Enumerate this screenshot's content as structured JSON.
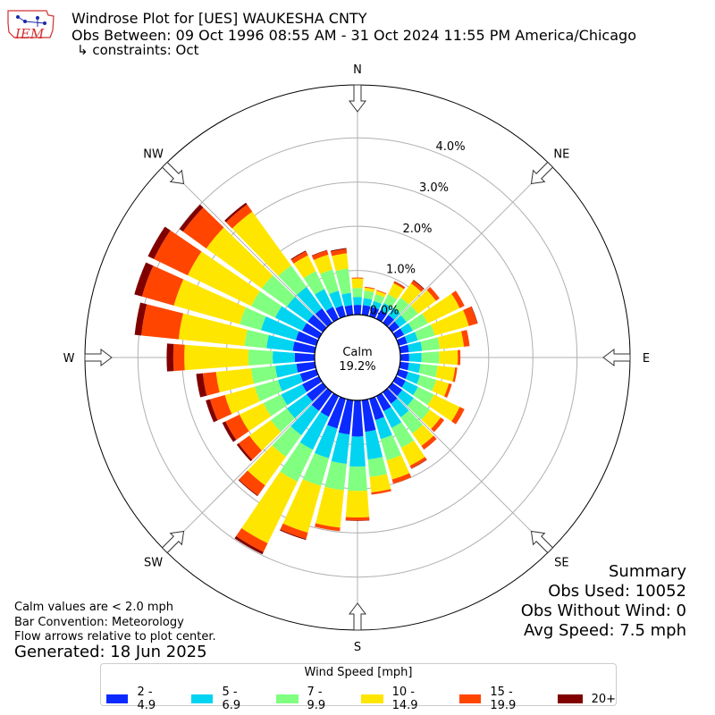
{
  "logo": {
    "text": "IEM"
  },
  "header": {
    "title": "Windrose Plot for [UES] WAUKESHA CNTY",
    "obs_between": "Obs Between: 09 Oct 1996 08:55 AM - 31 Oct 2024 11:55 PM America/Chicago",
    "constraints": "↳ constraints: Oct"
  },
  "notes": {
    "calm_def": "Calm values are < 2.0 mph",
    "bar_convention": "Bar Convention: Meteorology",
    "flow_arrows": "Flow arrows relative to plot center.",
    "generated": "Generated: 18 Jun 2025"
  },
  "summary": {
    "title": "Summary",
    "obs_used": "Obs Used: 10052",
    "obs_without_wind": "Obs Without Wind: 0",
    "avg_speed": "Avg Speed: 7.5 mph"
  },
  "chart_data": {
    "type": "windrose",
    "directions_deg": [
      0,
      10,
      20,
      30,
      40,
      50,
      60,
      70,
      80,
      90,
      100,
      110,
      120,
      130,
      140,
      150,
      160,
      170,
      180,
      190,
      200,
      210,
      220,
      230,
      240,
      250,
      260,
      270,
      280,
      290,
      300,
      310,
      320,
      330,
      340,
      350
    ],
    "speed_bins": [
      "2 - 4.9",
      "5 - 6.9",
      "7 - 9.9",
      "10 - 14.9",
      "15 - 19.9",
      "20+"
    ],
    "bin_colors": [
      "#0a2aff",
      "#00d4f0",
      "#80ff80",
      "#ffe600",
      "#ff4500",
      "#800000"
    ],
    "calm_label": "Calm",
    "calm_percent": "19.2%",
    "radial_ticks": [
      0,
      1,
      2,
      3,
      4
    ],
    "radial_tick_labels": [
      "0.0%",
      "1.0%",
      "2.0%",
      "3.0%",
      "4.0%"
    ],
    "r_max_percent": 5.2,
    "cardinal_labels": [
      {
        "label": "N",
        "deg": 0
      },
      {
        "label": "NE",
        "deg": 45
      },
      {
        "label": "E",
        "deg": 90
      },
      {
        "label": "SE",
        "deg": 135
      },
      {
        "label": "S",
        "deg": 180
      },
      {
        "label": "SW",
        "deg": 225
      },
      {
        "label": "W",
        "deg": 270
      },
      {
        "label": "NW",
        "deg": 315
      }
    ],
    "cumulative_percent": [
      [
        0.22,
        0.4,
        0.6,
        0.82,
        0.84,
        0.84
      ],
      [
        0.22,
        0.38,
        0.55,
        0.62,
        0.64,
        0.64
      ],
      [
        0.22,
        0.36,
        0.52,
        0.6,
        0.62,
        0.62
      ],
      [
        0.22,
        0.4,
        0.62,
        0.9,
        0.94,
        0.95
      ],
      [
        0.22,
        0.42,
        0.7,
        1.1,
        1.18,
        1.2
      ],
      [
        0.2,
        0.4,
        0.72,
        1.22,
        1.32,
        1.32
      ],
      [
        0.2,
        0.42,
        0.8,
        1.6,
        1.72,
        1.72
      ],
      [
        0.2,
        0.45,
        0.85,
        1.65,
        1.85,
        1.86
      ],
      [
        0.2,
        0.5,
        0.9,
        1.45,
        1.58,
        1.58
      ],
      [
        0.2,
        0.48,
        0.88,
        1.3,
        1.36,
        1.36
      ],
      [
        0.2,
        0.46,
        0.85,
        1.25,
        1.3,
        1.3
      ],
      [
        0.22,
        0.5,
        0.88,
        1.18,
        1.25,
        1.25
      ],
      [
        0.24,
        0.55,
        0.95,
        1.6,
        1.72,
        1.72
      ],
      [
        0.28,
        0.6,
        1.05,
        1.35,
        1.45,
        1.45
      ],
      [
        0.32,
        0.7,
        1.15,
        1.5,
        1.6,
        1.6
      ],
      [
        0.38,
        0.8,
        1.3,
        1.75,
        1.82,
        1.83
      ],
      [
        0.5,
        0.95,
        1.45,
        1.9,
        2.0,
        2.0
      ],
      [
        0.72,
        1.35,
        1.75,
        2.1,
        2.15,
        2.15
      ],
      [
        0.82,
        1.5,
        2.05,
        2.65,
        2.72,
        2.73
      ],
      [
        0.78,
        1.45,
        2.05,
        2.9,
        2.98,
        2.98
      ],
      [
        0.7,
        1.4,
        2.05,
        3.15,
        3.3,
        3.32
      ],
      [
        0.52,
        1.35,
        2.15,
        3.7,
        3.92,
        3.98
      ],
      [
        0.52,
        1.2,
        1.8,
        2.6,
        2.88,
        2.9
      ],
      [
        0.45,
        1.0,
        1.45,
        2.05,
        2.35,
        2.4
      ],
      [
        0.42,
        0.95,
        1.4,
        2.0,
        2.35,
        2.43
      ],
      [
        0.38,
        0.9,
        1.45,
        2.15,
        2.5,
        2.6
      ],
      [
        0.42,
        0.9,
        1.45,
        2.25,
        2.55,
        2.7
      ],
      [
        0.45,
        0.95,
        1.5,
        2.95,
        3.2,
        3.35
      ],
      [
        0.5,
        1.1,
        1.6,
        3.1,
        3.95,
        4.1
      ],
      [
        0.48,
        1.3,
        1.8,
        3.35,
        4.1,
        4.28
      ],
      [
        0.42,
        1.1,
        1.7,
        3.3,
        4.15,
        4.3
      ],
      [
        0.42,
        1.0,
        1.7,
        3.25,
        3.9,
        4.0
      ],
      [
        0.4,
        1.0,
        1.6,
        3.1,
        3.3,
        3.35
      ],
      [
        0.3,
        0.75,
        1.2,
        1.6,
        1.7,
        1.72
      ],
      [
        0.25,
        0.6,
        1.1,
        1.45,
        1.55,
        1.56
      ],
      [
        0.22,
        0.5,
        1.05,
        1.4,
        1.5,
        1.52
      ]
    ]
  },
  "legend": {
    "title": "Wind Speed [mph]",
    "items": [
      "2 - 4.9",
      "5 - 6.9",
      "7 - 9.9",
      "10 - 14.9",
      "15 - 19.9",
      "20+"
    ]
  }
}
